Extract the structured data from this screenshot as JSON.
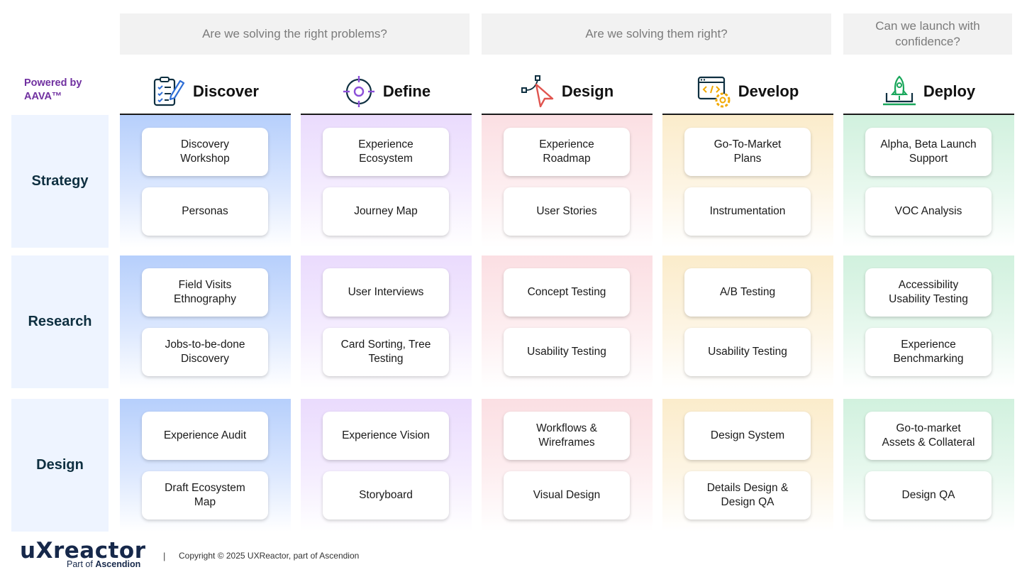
{
  "questions": [
    "Are we solving the right problems?",
    "Are we solving them right?",
    "Can we launch with confidence?"
  ],
  "powered_by": "Powered by AAVA™",
  "phases": [
    {
      "label": "Discover",
      "icon": "clipboard-pencil-icon",
      "color": "#2f6fd6"
    },
    {
      "label": "Define",
      "icon": "target-crosshair-icon",
      "color": "#8b4fd8"
    },
    {
      "label": "Design",
      "icon": "vector-pen-cursor-icon",
      "color": "#e0544f"
    },
    {
      "label": "Develop",
      "icon": "code-window-gear-icon",
      "color": "#f2a900"
    },
    {
      "label": "Deploy",
      "icon": "rocket-laptop-icon",
      "color": "#18a65a"
    }
  ],
  "rows": [
    {
      "label": "Strategy",
      "cells": [
        [
          "Discovery\nWorkshop",
          "Personas"
        ],
        [
          "Experience\nEcosystem",
          "Journey Map"
        ],
        [
          "Experience\nRoadmap",
          "User Stories"
        ],
        [
          "Go-To-Market\nPlans",
          "Instrumentation"
        ],
        [
          "Alpha, Beta Launch\nSupport",
          "VOC Analysis"
        ]
      ]
    },
    {
      "label": "Research",
      "cells": [
        [
          "Field Visits\nEthnography",
          "Jobs-to-be-done\nDiscovery"
        ],
        [
          "User Interviews",
          "Card Sorting, Tree\nTesting"
        ],
        [
          "Concept Testing",
          "Usability Testing"
        ],
        [
          "A/B Testing",
          "Usability Testing"
        ],
        [
          "Accessibility\nUsability Testing",
          "Experience\nBenchmarking"
        ]
      ]
    },
    {
      "label": "Design",
      "cells": [
        [
          "Experience Audit",
          "Draft Ecosystem\nMap"
        ],
        [
          "Experience Vision",
          "Storyboard"
        ],
        [
          "Workflows &\nWireframes",
          "Visual Design"
        ],
        [
          "Design System",
          "Details Design &\nDesign QA"
        ],
        [
          "Go-to-market\nAssets & Collateral",
          "Design QA"
        ]
      ]
    }
  ],
  "footer": {
    "logo": "uXreactor",
    "logo_sub_prefix": "Part of",
    "logo_sub_brand": "Ascendion",
    "separator": "|",
    "copyright": "Copyright © 2025 UXReactor, part of Ascendion"
  }
}
